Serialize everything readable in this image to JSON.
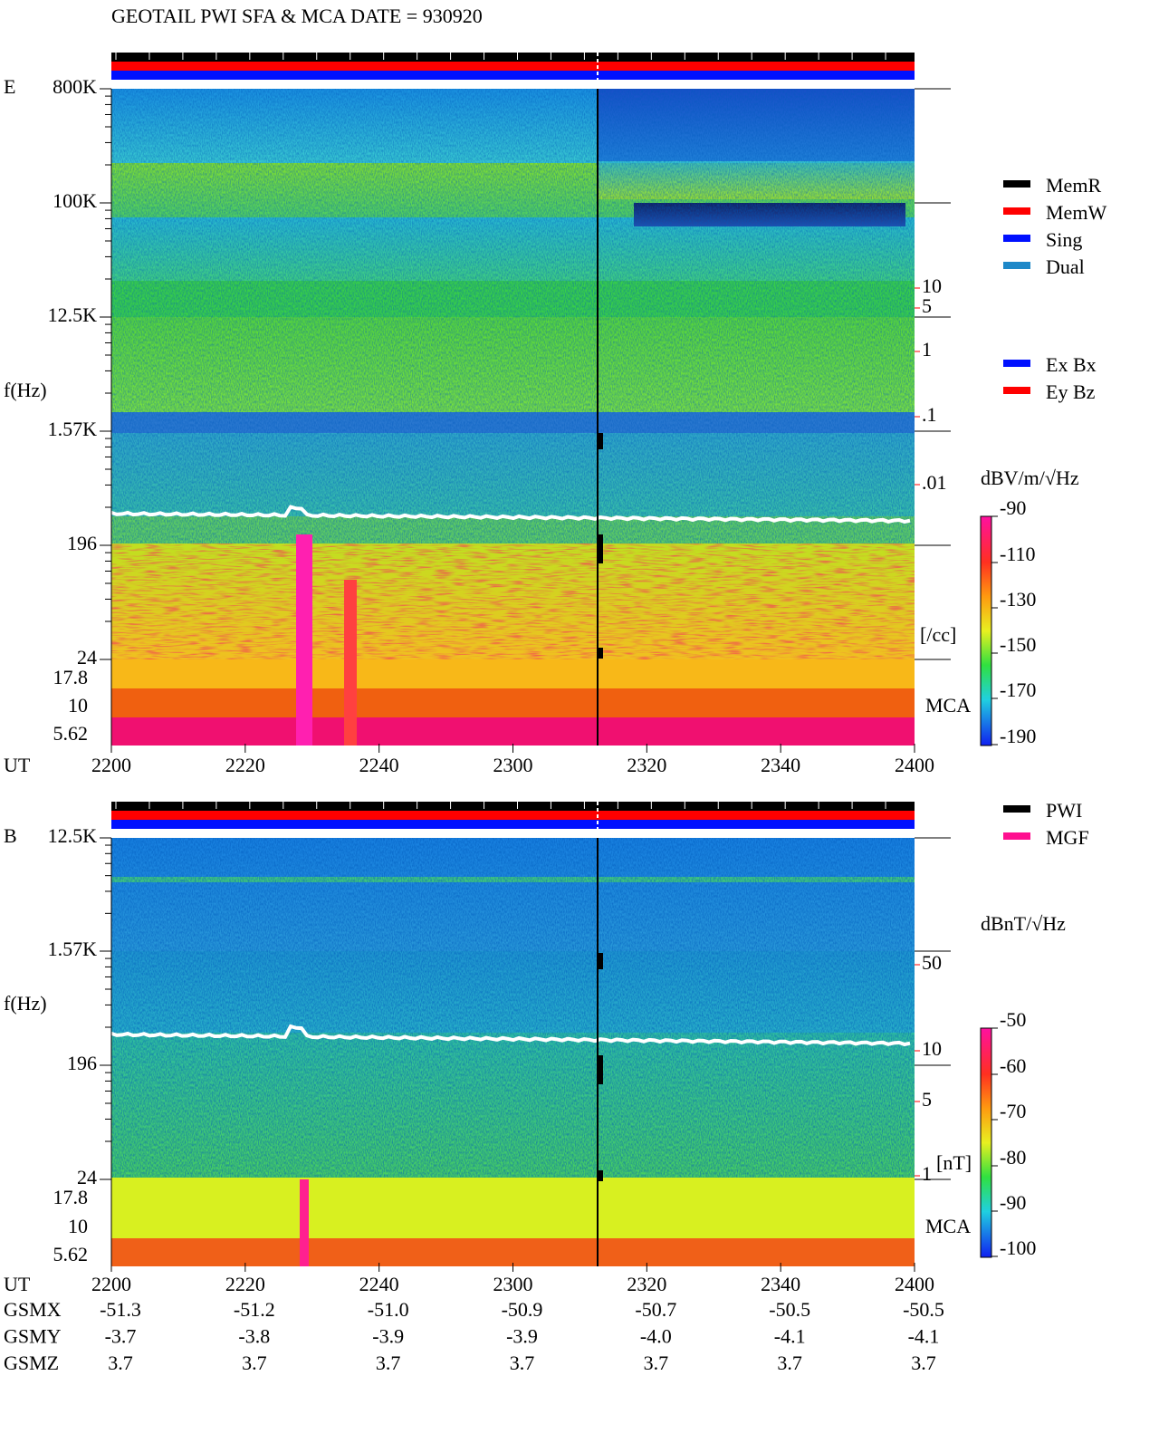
{
  "title": "GEOTAIL  PWI SFA & MCA   DATE = 930920",
  "e_panel": {
    "label": "E",
    "y_label": "f(Hz)",
    "freq_ticks": [
      "800K",
      "100K",
      "12.5K",
      "1.57K",
      "196",
      "24"
    ],
    "mca_ticks": [
      "17.8",
      "10",
      "5.62"
    ],
    "density_ticks": [
      "10",
      "5",
      "1",
      ".1",
      ".01"
    ],
    "density_unit": "[/cc]",
    "mca_label": "MCA",
    "ut_label": "UT",
    "ut_ticks": [
      "2200",
      "2220",
      "2240",
      "2300",
      "2320",
      "2340",
      "2400"
    ],
    "unit": "dBV/m/√Hz",
    "colorbar_ticks": [
      "-90",
      "-110",
      "-130",
      "-150",
      "-170",
      "-190"
    ]
  },
  "mode_legend": [
    {
      "label": "MemR",
      "color": "#000000"
    },
    {
      "label": "MemW",
      "color": "#ff0000"
    },
    {
      "label": "Sing",
      "color": "#0010ff"
    },
    {
      "label": "Dual",
      "color": "#1e88c8"
    }
  ],
  "component_legend": [
    {
      "label": "Ex Bx",
      "color": "#0010ff"
    },
    {
      "label": "Ey Bz",
      "color": "#ff0000"
    }
  ],
  "b_panel": {
    "label": "B",
    "y_label": "f(Hz)",
    "freq_ticks": [
      "12.5K",
      "1.57K",
      "196",
      "24"
    ],
    "mca_ticks": [
      "17.8",
      "10",
      "5.62"
    ],
    "field_ticks": [
      "50",
      "10",
      "5",
      "1"
    ],
    "field_unit": "[nT]",
    "mca_label": "MCA",
    "ut_label": "UT",
    "ut_ticks": [
      "2200",
      "2220",
      "2240",
      "2300",
      "2320",
      "2340",
      "2400"
    ],
    "unit": "dBnT/√Hz",
    "colorbar_ticks": [
      "-50",
      "-60",
      "-70",
      "-80",
      "-90",
      "-100"
    ]
  },
  "source_legend": [
    {
      "label": "PWI",
      "color": "#000000"
    },
    {
      "label": "MGF",
      "color": "#ff1090"
    }
  ],
  "orbit": [
    {
      "label": "GSMX",
      "values": [
        "-51.3",
        "-51.2",
        "-51.0",
        "-50.9",
        "-50.7",
        "-50.5",
        "-50.5"
      ]
    },
    {
      "label": "GSMY",
      "values": [
        "-3.7",
        "-3.8",
        "-3.9",
        "-3.9",
        "-4.0",
        "-4.1",
        "-4.1"
      ]
    },
    {
      "label": "GSMZ",
      "values": [
        "3.7",
        "3.7",
        "3.7",
        "3.7",
        "3.7",
        "3.7",
        "3.7"
      ]
    }
  ]
}
